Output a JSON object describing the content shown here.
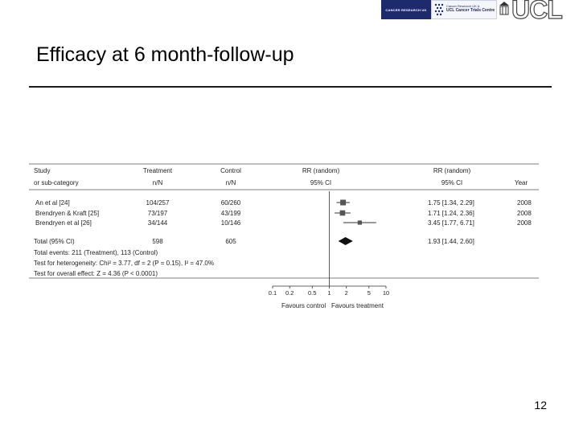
{
  "slide": {
    "title": "Efficacy at 6 month-follow-up",
    "page_number": "12"
  },
  "logos": {
    "cr_text": "CANCER RESEARCH UK",
    "crs_line1": "Cancer Research UK &",
    "crs_line2": "UCL Cancer Trials Centre",
    "crs_line3": "",
    "ucl_text": "UCL"
  },
  "chart_data": {
    "type": "forest",
    "headers": {
      "study_line1": "Study",
      "study_line2": "or sub-category",
      "treatment_line1": "Treatment",
      "treatment_line2": "n/N",
      "control_line1": "Control",
      "control_line2": "n/N",
      "rr_plot_line1": "RR (random)",
      "rr_plot_line2": "95% CI",
      "rr_text_line1": "RR (random)",
      "rr_text_line2": "95% CI",
      "year": "Year"
    },
    "studies": [
      {
        "name": "An et al [24]",
        "treatment": "104/257",
        "control": "60/260",
        "rr": 1.75,
        "ci_low": 1.34,
        "ci_high": 2.29,
        "rr_text": "1.75  [1.34,  2.29]",
        "year": "2008",
        "weight": 1.0
      },
      {
        "name": "Brendryen & Kraft [25]",
        "treatment": "73/197",
        "control": "43/199",
        "rr": 1.71,
        "ci_low": 1.24,
        "ci_high": 2.36,
        "rr_text": "1.71  [1.24,  2.36]",
        "year": "2008",
        "weight": 0.9
      },
      {
        "name": "Brendryen et al [26]",
        "treatment": "34/144",
        "control": "10/146",
        "rr": 3.45,
        "ci_low": 1.77,
        "ci_high": 6.71,
        "rr_text": "3.45  [1.77,  6.71]",
        "year": "2008",
        "weight": 0.55
      }
    ],
    "total": {
      "label": "Total (95% CI)",
      "treatment": "598",
      "control": "605",
      "rr": 1.93,
      "ci_low": 1.44,
      "ci_high": 2.6,
      "rr_text": "1.93  [1.44,  2.60]"
    },
    "stats": [
      "Total events: 211 (Treatment), 113 (Control)",
      "Test for heterogeneity: Chi² = 3.77, df = 2 (P = 0.15), I² = 47.0%",
      "Test for overall effect: Z = 4.36 (P < 0.0001)"
    ],
    "x_axis": {
      "scale": "log",
      "ticks": [
        0.1,
        0.2,
        0.5,
        1,
        2,
        5,
        10
      ],
      "tick_labels": [
        "0.1",
        "0.2",
        "0.5",
        "1",
        "2",
        "5",
        "10"
      ],
      "label_left": "Favours control",
      "label_right": "Favours treatment",
      "xlim": [
        0.1,
        10
      ]
    }
  }
}
